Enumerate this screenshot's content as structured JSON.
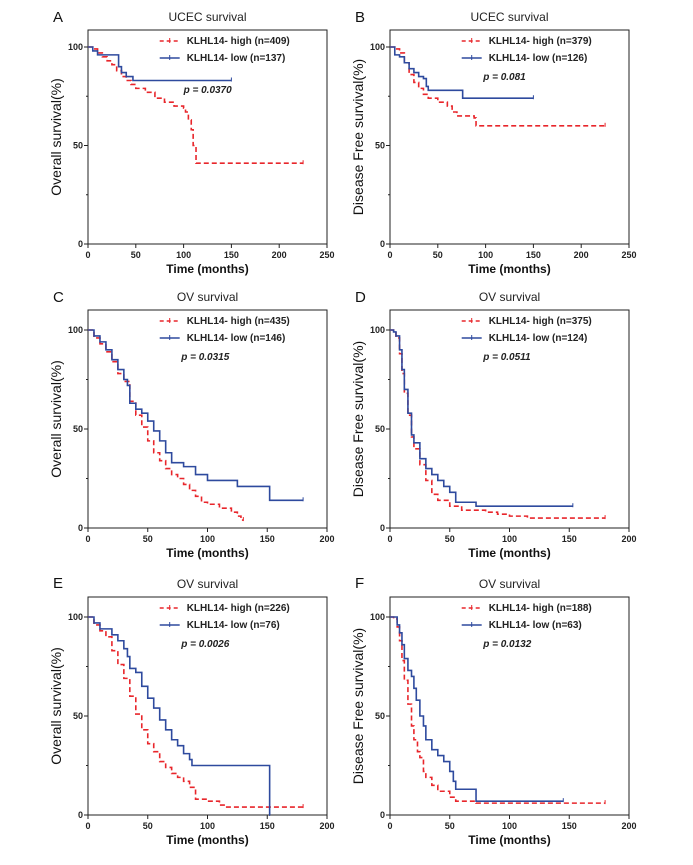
{
  "colors": {
    "high": "#e8262b",
    "low": "#2e4a9e",
    "axis": "#222222"
  },
  "chart_data": [
    {
      "panel": "A",
      "type": "line",
      "title": "UCEC survival",
      "xlabel": "Time (months)",
      "ylabel": "Overall survival(%)",
      "xlim": [
        0,
        250
      ],
      "ylim": [
        0,
        100
      ],
      "xticks": [
        0,
        50,
        100,
        150,
        200,
        250
      ],
      "yticks": [
        0,
        50,
        100
      ],
      "p_value": "p = 0.0370",
      "series": [
        {
          "name": "KLHL14- high (n=409)",
          "group": "high",
          "x": [
            0,
            5,
            10,
            15,
            20,
            25,
            30,
            35,
            40,
            45,
            50,
            60,
            70,
            80,
            90,
            100,
            102,
            105,
            108,
            110,
            113,
            130,
            150,
            200,
            225
          ],
          "y": [
            100,
            99,
            97,
            95,
            93,
            91,
            88,
            85,
            83,
            81,
            79,
            77,
            74,
            72,
            70,
            69,
            67,
            63,
            58,
            50,
            41,
            41,
            41,
            41,
            41
          ]
        },
        {
          "name": "KLHL14- low (n=137)",
          "group": "low",
          "x": [
            0,
            5,
            10,
            15,
            20,
            28,
            32,
            35,
            40,
            45,
            47,
            60,
            80,
            100,
            120,
            150
          ],
          "y": [
            100,
            98,
            96,
            96,
            96,
            96,
            90,
            87,
            85,
            85,
            83,
            83,
            83,
            83,
            83,
            83
          ]
        }
      ]
    },
    {
      "panel": "B",
      "type": "line",
      "title": "UCEC survival",
      "xlabel": "Time (months)",
      "ylabel": "Disease Free survival(%)",
      "xlim": [
        0,
        250
      ],
      "ylim": [
        0,
        100
      ],
      "xticks": [
        0,
        50,
        100,
        150,
        200,
        250
      ],
      "yticks": [
        0,
        50,
        100
      ],
      "p_value": "p = 0.081",
      "series": [
        {
          "name": "KLHL14- high (n=379)",
          "group": "high",
          "x": [
            0,
            5,
            10,
            15,
            20,
            25,
            30,
            35,
            40,
            50,
            60,
            65,
            70,
            80,
            88,
            90,
            100,
            150,
            200,
            225
          ],
          "y": [
            100,
            99,
            97,
            92,
            86,
            82,
            79,
            76,
            74,
            72,
            70,
            67,
            65,
            65,
            64,
            60,
            60,
            60,
            60,
            60
          ]
        },
        {
          "name": "KLHL14- low (n=126)",
          "group": "low",
          "x": [
            0,
            5,
            10,
            15,
            20,
            25,
            30,
            35,
            38,
            40,
            50,
            60,
            74,
            76,
            100,
            150
          ],
          "y": [
            100,
            96,
            95,
            92,
            89,
            87,
            85,
            84,
            80,
            78,
            78,
            78,
            78,
            74,
            74,
            74
          ]
        }
      ]
    },
    {
      "panel": "C",
      "type": "line",
      "title": "OV survival",
      "xlabel": "Time (months)",
      "ylabel": "Overall survival(%)",
      "xlim": [
        0,
        200
      ],
      "ylim": [
        0,
        100
      ],
      "xticks": [
        0,
        50,
        100,
        150,
        200
      ],
      "yticks": [
        0,
        50,
        100
      ],
      "p_value": "p = 0.0315",
      "series": [
        {
          "name": "KLHL14- high (n=435)",
          "group": "high",
          "x": [
            0,
            5,
            10,
            15,
            20,
            25,
            30,
            35,
            40,
            45,
            50,
            55,
            60,
            65,
            70,
            75,
            80,
            85,
            90,
            95,
            100,
            110,
            120,
            125,
            128,
            130
          ],
          "y": [
            100,
            96,
            93,
            89,
            84,
            78,
            74,
            64,
            57,
            51,
            44,
            38,
            34,
            30,
            27,
            25,
            22,
            19,
            16,
            13,
            12,
            10,
            8,
            6,
            4,
            4
          ]
        },
        {
          "name": "KLHL14- low (n=146)",
          "group": "low",
          "x": [
            0,
            5,
            10,
            15,
            20,
            25,
            30,
            33,
            35,
            40,
            45,
            50,
            55,
            60,
            65,
            70,
            80,
            90,
            100,
            125,
            150,
            152,
            180
          ],
          "y": [
            100,
            97,
            94,
            90,
            85,
            80,
            75,
            72,
            63,
            60,
            58,
            54,
            49,
            44,
            38,
            33,
            31,
            27,
            24,
            21,
            21,
            14,
            14
          ]
        }
      ]
    },
    {
      "panel": "D",
      "type": "line",
      "title": "OV survival",
      "xlabel": "Time (months)",
      "ylabel": "Disease Free survival(%)",
      "xlim": [
        0,
        200
      ],
      "ylim": [
        0,
        100
      ],
      "xticks": [
        0,
        50,
        100,
        150,
        200
      ],
      "yticks": [
        0,
        50,
        100
      ],
      "p_value": "p = 0.0511",
      "series": [
        {
          "name": "KLHL14- high (n=375)",
          "group": "high",
          "x": [
            0,
            3,
            5,
            8,
            10,
            12,
            15,
            18,
            20,
            25,
            30,
            35,
            40,
            50,
            60,
            70,
            80,
            90,
            100,
            115,
            150,
            180
          ],
          "y": [
            100,
            99,
            96,
            88,
            78,
            68,
            57,
            46,
            40,
            32,
            24,
            17,
            14,
            11,
            9,
            9,
            8,
            7,
            6,
            5,
            5,
            5
          ]
        },
        {
          "name": "KLHL14- low (n=124)",
          "group": "low",
          "x": [
            0,
            3,
            5,
            8,
            10,
            12,
            15,
            18,
            20,
            25,
            30,
            35,
            40,
            45,
            50,
            55,
            70,
            72,
            100,
            153
          ],
          "y": [
            100,
            99,
            97,
            90,
            80,
            70,
            58,
            47,
            43,
            35,
            30,
            27,
            24,
            21,
            18,
            13,
            13,
            11,
            11,
            11
          ]
        }
      ]
    },
    {
      "panel": "E",
      "type": "line",
      "title": "OV survival",
      "xlabel": "Time (months)",
      "ylabel": "Overall survival(%)",
      "xlim": [
        0,
        200
      ],
      "ylim": [
        0,
        100
      ],
      "xticks": [
        0,
        50,
        100,
        150,
        200
      ],
      "yticks": [
        0,
        50,
        100
      ],
      "p_value": "p = 0.0026",
      "series": [
        {
          "name": "KLHL14- high (n=226)",
          "group": "high",
          "x": [
            0,
            5,
            10,
            15,
            20,
            25,
            30,
            35,
            40,
            45,
            50,
            55,
            60,
            65,
            70,
            75,
            80,
            85,
            90,
            100,
            110,
            115,
            150,
            180
          ],
          "y": [
            100,
            96,
            93,
            90,
            83,
            76,
            69,
            60,
            51,
            43,
            36,
            32,
            27,
            24,
            21,
            19,
            17,
            14,
            8,
            7,
            5,
            4,
            4,
            4
          ]
        },
        {
          "name": "KLHL14- low (n=76)",
          "group": "low",
          "x": [
            0,
            5,
            10,
            15,
            20,
            25,
            30,
            33,
            35,
            40,
            45,
            50,
            55,
            60,
            65,
            70,
            75,
            80,
            85,
            87,
            100,
            150,
            152
          ],
          "y": [
            100,
            97,
            94,
            94,
            91,
            88,
            84,
            80,
            74,
            72,
            65,
            59,
            54,
            48,
            43,
            38,
            35,
            31,
            28,
            25,
            25,
            25,
            0
          ]
        }
      ]
    },
    {
      "panel": "F",
      "type": "line",
      "title": "OV survival",
      "xlabel": "Time (months)",
      "ylabel": "Disease Free survival(%)",
      "xlim": [
        0,
        200
      ],
      "ylim": [
        0,
        100
      ],
      "xticks": [
        0,
        50,
        100,
        150,
        200
      ],
      "yticks": [
        0,
        50,
        100
      ],
      "p_value": "p = 0.0132",
      "series": [
        {
          "name": "KLHL14- high (n=188)",
          "group": "high",
          "x": [
            0,
            3,
            6,
            8,
            10,
            12,
            15,
            18,
            20,
            23,
            25,
            28,
            30,
            35,
            40,
            50,
            55,
            60,
            72,
            100,
            150,
            180
          ],
          "y": [
            100,
            99,
            95,
            88,
            78,
            68,
            56,
            45,
            38,
            32,
            29,
            22,
            19,
            15,
            12,
            9,
            7,
            7,
            6,
            6,
            6,
            6
          ]
        },
        {
          "name": "KLHL14- low (n=63)",
          "group": "low",
          "x": [
            0,
            5,
            6,
            8,
            10,
            12,
            15,
            18,
            20,
            22,
            25,
            28,
            30,
            35,
            40,
            45,
            50,
            53,
            55,
            60,
            72,
            100,
            145
          ],
          "y": [
            100,
            100,
            96,
            92,
            86,
            79,
            73,
            70,
            64,
            58,
            50,
            45,
            38,
            33,
            30,
            27,
            22,
            17,
            13,
            13,
            7,
            7,
            7
          ]
        }
      ]
    }
  ]
}
